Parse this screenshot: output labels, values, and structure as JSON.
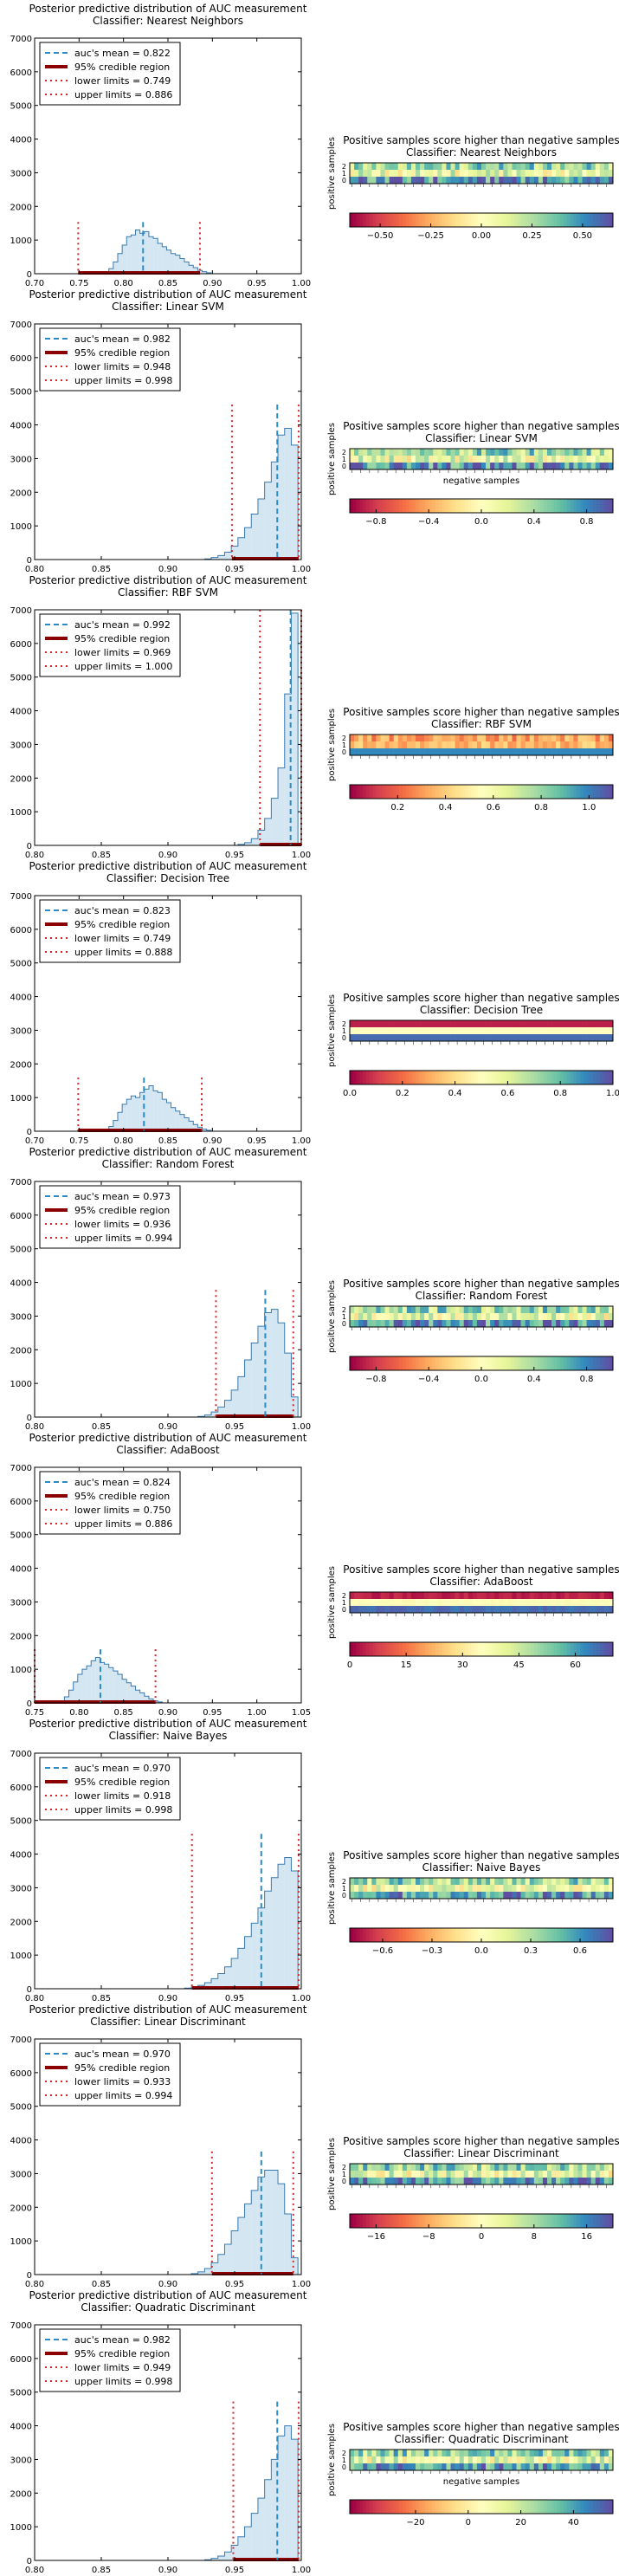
{
  "chart_data": [
    {
      "type": "histogram",
      "title": "Posterior predictive distribution of AUC measurement",
      "subtitle": "Classifier: Nearest Neighbors",
      "xlim": [
        0.7,
        1.0
      ],
      "xticks": [
        "0.70",
        "0.75",
        "0.80",
        "0.85",
        "0.90",
        "0.95",
        "1.00"
      ],
      "ylim": [
        0,
        7000
      ],
      "yticks": [
        "0",
        "1000",
        "2000",
        "3000",
        "4000",
        "5000",
        "6000",
        "7000"
      ],
      "legend": {
        "placement": "top-left",
        "entries": [
          "auc's mean = 0.822",
          "95% credible region",
          "lower limits = 0.749",
          "upper limits = 0.886"
        ]
      },
      "mean": 0.822,
      "lower": 0.749,
      "upper": 0.886,
      "bins": {
        "x": [
          0.781,
          0.786,
          0.791,
          0.796,
          0.801,
          0.806,
          0.811,
          0.816,
          0.821,
          0.826,
          0.831,
          0.836,
          0.841,
          0.846,
          0.851,
          0.856,
          0.861,
          0.866,
          0.871,
          0.876,
          0.881,
          0.886,
          0.891,
          0.896
        ],
        "y": [
          50,
          150,
          350,
          600,
          850,
          1100,
          1150,
          1300,
          1200,
          1250,
          1100,
          1050,
          900,
          800,
          700,
          600,
          550,
          450,
          350,
          250,
          180,
          100,
          60,
          30
        ]
      }
    },
    {
      "type": "heatmap",
      "title": "Positive samples score higher than negative samples",
      "subtitle": "Classifier: Nearest Neighbors",
      "ylabel": "positive samples",
      "xlabel": "",
      "colorbar_ticks": [
        "−0.50",
        "−0.25",
        "0.00",
        "0.25",
        "0.50"
      ],
      "colorbar_range": [
        -0.65,
        0.65
      ],
      "rows": 3,
      "cols": 60
    },
    {
      "type": "histogram",
      "title": "Posterior predictive distribution of AUC measurement",
      "subtitle": "Classifier: Linear SVM",
      "xlim": [
        0.8,
        1.0
      ],
      "xticks": [
        "0.80",
        "0.85",
        "0.90",
        "0.95",
        "1.00"
      ],
      "ylim": [
        0,
        7000
      ],
      "yticks": [
        "0",
        "1000",
        "2000",
        "3000",
        "4000",
        "5000",
        "6000",
        "7000"
      ],
      "legend": {
        "placement": "top-left",
        "entries": [
          "auc's mean = 0.982",
          "95% credible region",
          "lower limits = 0.948",
          "upper limits = 0.998"
        ]
      },
      "mean": 0.982,
      "lower": 0.948,
      "upper": 0.998,
      "bins": {
        "x": [
          0.93,
          0.935,
          0.94,
          0.945,
          0.95,
          0.955,
          0.96,
          0.965,
          0.97,
          0.975,
          0.98,
          0.985,
          0.99,
          0.995
        ],
        "y": [
          20,
          60,
          120,
          220,
          400,
          650,
          950,
          1350,
          1800,
          2300,
          2900,
          3700,
          3900,
          3400
        ]
      }
    },
    {
      "type": "heatmap",
      "title": "Positive samples score higher than negative samples",
      "subtitle": "Classifier: Linear SVM",
      "ylabel": "positive samples",
      "xlabel": "negative samples",
      "colorbar_ticks": [
        "−0.8",
        "−0.4",
        "0.0",
        "0.4",
        "0.8"
      ],
      "colorbar_range": [
        -1.0,
        1.0
      ],
      "rows": 3,
      "cols": 60
    },
    {
      "type": "histogram",
      "title": "Posterior predictive distribution of AUC measurement",
      "subtitle": "Classifier: RBF SVM",
      "xlim": [
        0.8,
        1.0
      ],
      "xticks": [
        "0.80",
        "0.85",
        "0.90",
        "0.95",
        "1.00"
      ],
      "ylim": [
        0,
        7000
      ],
      "yticks": [
        "0",
        "1000",
        "2000",
        "3000",
        "4000",
        "5000",
        "6000",
        "7000"
      ],
      "legend": {
        "placement": "top-left",
        "entries": [
          "auc's mean = 0.992",
          "95% credible region",
          "lower limits = 0.969",
          "upper limits = 1.000"
        ]
      },
      "mean": 0.992,
      "lower": 0.969,
      "upper": 1.0,
      "bins": {
        "x": [
          0.955,
          0.96,
          0.965,
          0.97,
          0.975,
          0.98,
          0.985,
          0.99,
          0.995
        ],
        "y": [
          30,
          80,
          200,
          450,
          800,
          1400,
          2300,
          4500,
          6900
        ]
      }
    },
    {
      "type": "heatmap",
      "title": "Positive samples score higher than negative samples",
      "subtitle": "Classifier: RBF SVM",
      "ylabel": "positive samples",
      "xlabel": "",
      "colorbar_ticks": [
        "0.2",
        "0.4",
        "0.6",
        "0.8",
        "1.0"
      ],
      "colorbar_range": [
        0.0,
        1.1
      ],
      "rows": 3,
      "cols": 60
    },
    {
      "type": "histogram",
      "title": "Posterior predictive distribution of AUC measurement",
      "subtitle": "Classifier: Decision Tree",
      "xlim": [
        0.7,
        1.0
      ],
      "xticks": [
        "0.70",
        "0.75",
        "0.80",
        "0.85",
        "0.90",
        "0.95",
        "1.00"
      ],
      "ylim": [
        0,
        7000
      ],
      "yticks": [
        "0",
        "1000",
        "2000",
        "3000",
        "4000",
        "5000",
        "6000",
        "7000"
      ],
      "legend": {
        "placement": "top-left",
        "entries": [
          "auc's mean = 0.823",
          "95% credible region",
          "lower limits = 0.749",
          "upper limits = 0.888"
        ]
      },
      "mean": 0.823,
      "lower": 0.749,
      "upper": 0.888,
      "bins": {
        "x": [
          0.781,
          0.786,
          0.791,
          0.796,
          0.801,
          0.806,
          0.811,
          0.816,
          0.821,
          0.826,
          0.831,
          0.836,
          0.841,
          0.846,
          0.851,
          0.856,
          0.861,
          0.866,
          0.871,
          0.876,
          0.881,
          0.886,
          0.891,
          0.896
        ],
        "y": [
          40,
          140,
          320,
          560,
          800,
          950,
          1050,
          1000,
          1150,
          1250,
          1350,
          1200,
          1150,
          950,
          850,
          700,
          600,
          500,
          400,
          300,
          200,
          120,
          60,
          30
        ]
      }
    },
    {
      "type": "heatmap",
      "title": "Positive samples score higher than negative samples",
      "subtitle": "Classifier: Decision Tree",
      "ylabel": "positive samples",
      "xlabel": "",
      "colorbar_ticks": [
        "0.0",
        "0.2",
        "0.4",
        "0.6",
        "0.8",
        "1.0"
      ],
      "colorbar_range": [
        0.0,
        1.0
      ],
      "rows": 3,
      "cols": 60
    },
    {
      "type": "histogram",
      "title": "Posterior predictive distribution of AUC measurement",
      "subtitle": "Classifier: Random Forest",
      "xlim": [
        0.8,
        1.0
      ],
      "xticks": [
        "0.80",
        "0.85",
        "0.90",
        "0.95",
        "1.00"
      ],
      "ylim": [
        0,
        7000
      ],
      "yticks": [
        "0",
        "1000",
        "2000",
        "3000",
        "4000",
        "5000",
        "6000",
        "7000"
      ],
      "legend": {
        "placement": "top-left",
        "entries": [
          "auc's mean = 0.973",
          "95% credible region",
          "lower limits = 0.936",
          "upper limits = 0.994"
        ]
      },
      "mean": 0.973,
      "lower": 0.936,
      "upper": 0.994,
      "bins": {
        "x": [
          0.925,
          0.93,
          0.935,
          0.94,
          0.945,
          0.95,
          0.955,
          0.96,
          0.965,
          0.97,
          0.975,
          0.98,
          0.985,
          0.99,
          0.995
        ],
        "y": [
          20,
          60,
          150,
          300,
          500,
          800,
          1200,
          1700,
          2200,
          2700,
          3100,
          3200,
          2800,
          1900,
          600
        ]
      }
    },
    {
      "type": "heatmap",
      "title": "Positive samples score higher than negative samples",
      "subtitle": "Classifier: Random Forest",
      "ylabel": "positive samples",
      "xlabel": "",
      "colorbar_ticks": [
        "−0.8",
        "−0.4",
        "0.0",
        "0.4",
        "0.8"
      ],
      "colorbar_range": [
        -1.0,
        1.0
      ],
      "rows": 3,
      "cols": 60
    },
    {
      "type": "histogram",
      "title": "Posterior predictive distribution of AUC measurement",
      "subtitle": "Classifier: AdaBoost",
      "xlim": [
        0.75,
        1.05
      ],
      "xticks": [
        "0.75",
        "0.80",
        "0.85",
        "0.90",
        "0.95",
        "1.00",
        "1.05"
      ],
      "ylim": [
        0,
        7000
      ],
      "yticks": [
        "0",
        "1000",
        "2000",
        "3000",
        "4000",
        "5000",
        "6000",
        "7000"
      ],
      "legend": {
        "placement": "top-left",
        "entries": [
          "auc's mean = 0.824",
          "95% credible region",
          "lower limits = 0.750",
          "upper limits = 0.886"
        ]
      },
      "mean": 0.824,
      "lower": 0.75,
      "upper": 0.886,
      "bins": {
        "x": [
          0.781,
          0.786,
          0.791,
          0.796,
          0.801,
          0.806,
          0.811,
          0.816,
          0.821,
          0.826,
          0.831,
          0.836,
          0.841,
          0.846,
          0.851,
          0.856,
          0.861,
          0.866,
          0.871,
          0.876,
          0.881,
          0.886,
          0.891
        ],
        "y": [
          60,
          180,
          380,
          620,
          850,
          1000,
          1100,
          1250,
          1350,
          1200,
          1150,
          1050,
          950,
          850,
          700,
          600,
          500,
          380,
          300,
          200,
          120,
          60,
          30
        ]
      }
    },
    {
      "type": "heatmap",
      "title": "Positive samples score higher than negative samples",
      "subtitle": "Classifier: AdaBoost",
      "ylabel": "positive samples",
      "xlabel": "",
      "colorbar_ticks": [
        "0",
        "15",
        "30",
        "45",
        "60"
      ],
      "colorbar_range": [
        0,
        70
      ],
      "rows": 3,
      "cols": 60
    },
    {
      "type": "histogram",
      "title": "Posterior predictive distribution of AUC measurement",
      "subtitle": "Classifier: Naive Bayes",
      "xlim": [
        0.8,
        1.0
      ],
      "xticks": [
        "0.80",
        "0.85",
        "0.90",
        "0.95",
        "1.00"
      ],
      "ylim": [
        0,
        7000
      ],
      "yticks": [
        "0",
        "1000",
        "2000",
        "3000",
        "4000",
        "5000",
        "6000",
        "7000"
      ],
      "legend": {
        "placement": "top-left",
        "entries": [
          "auc's mean = 0.970",
          "95% credible region",
          "lower limits = 0.918",
          "upper limits = 0.998"
        ]
      },
      "mean": 0.97,
      "lower": 0.918,
      "upper": 0.998,
      "bins": {
        "x": [
          0.915,
          0.92,
          0.925,
          0.93,
          0.935,
          0.94,
          0.945,
          0.95,
          0.955,
          0.96,
          0.965,
          0.97,
          0.975,
          0.98,
          0.985,
          0.99,
          0.995
        ],
        "y": [
          20,
          50,
          100,
          180,
          300,
          450,
          650,
          900,
          1200,
          1550,
          1950,
          2400,
          2900,
          3300,
          3700,
          3900,
          3500
        ]
      }
    },
    {
      "type": "heatmap",
      "title": "Positive samples score higher than negative samples",
      "subtitle": "Classifier: Naive Bayes",
      "ylabel": "positive samples",
      "xlabel": "",
      "colorbar_ticks": [
        "−0.6",
        "−0.3",
        "0.0",
        "0.3",
        "0.6"
      ],
      "colorbar_range": [
        -0.8,
        0.8
      ],
      "rows": 3,
      "cols": 60
    },
    {
      "type": "histogram",
      "title": "Posterior predictive distribution of AUC measurement",
      "subtitle": "Classifier: Linear Discriminant",
      "xlim": [
        0.8,
        1.0
      ],
      "xticks": [
        "0.80",
        "0.85",
        "0.90",
        "0.95",
        "1.00"
      ],
      "ylim": [
        0,
        7000
      ],
      "yticks": [
        "0",
        "1000",
        "2000",
        "3000",
        "4000",
        "5000",
        "6000",
        "7000"
      ],
      "legend": {
        "placement": "top-left",
        "entries": [
          "auc's mean = 0.970",
          "95% credible region",
          "lower limits = 0.933",
          "upper limits = 0.994"
        ]
      },
      "mean": 0.97,
      "lower": 0.933,
      "upper": 0.994,
      "bins": {
        "x": [
          0.92,
          0.925,
          0.93,
          0.935,
          0.94,
          0.945,
          0.95,
          0.955,
          0.96,
          0.965,
          0.97,
          0.975,
          0.98,
          0.985,
          0.99,
          0.995
        ],
        "y": [
          30,
          80,
          180,
          350,
          600,
          900,
          1300,
          1700,
          2100,
          2500,
          2900,
          3100,
          3100,
          2700,
          1800,
          500
        ]
      }
    },
    {
      "type": "heatmap",
      "title": "Positive samples score higher than negative samples",
      "subtitle": "Classifier: Linear Discriminant",
      "ylabel": "positive samples",
      "xlabel": "",
      "colorbar_ticks": [
        "−16",
        "−8",
        "0",
        "8",
        "16"
      ],
      "colorbar_range": [
        -20,
        20
      ],
      "rows": 3,
      "cols": 60
    },
    {
      "type": "histogram",
      "title": "Posterior predictive distribution of AUC measurement",
      "subtitle": "Classifier: Quadratic Discriminant",
      "xlim": [
        0.8,
        1.0
      ],
      "xticks": [
        "0.80",
        "0.85",
        "0.90",
        "0.95",
        "1.00"
      ],
      "ylim": [
        0,
        7000
      ],
      "yticks": [
        "0",
        "1000",
        "2000",
        "3000",
        "4000",
        "5000",
        "6000",
        "7000"
      ],
      "legend": {
        "placement": "top-left",
        "entries": [
          "auc's mean = 0.982",
          "95% credible region",
          "lower limits = 0.949",
          "upper limits = 0.998"
        ]
      },
      "mean": 0.982,
      "lower": 0.949,
      "upper": 0.998,
      "bins": {
        "x": [
          0.93,
          0.935,
          0.94,
          0.945,
          0.95,
          0.955,
          0.96,
          0.965,
          0.97,
          0.975,
          0.98,
          0.985,
          0.99,
          0.995
        ],
        "y": [
          20,
          60,
          130,
          250,
          450,
          700,
          1000,
          1400,
          1850,
          2400,
          3000,
          3700,
          4000,
          3600
        ]
      }
    },
    {
      "type": "heatmap",
      "title": "Positive samples score higher than negative samples",
      "subtitle": "Classifier: Quadratic Discriminant",
      "ylabel": "positive samples",
      "xlabel": "negative samples",
      "colorbar_ticks": [
        "−20",
        "0",
        "20",
        "40"
      ],
      "colorbar_range": [
        -45,
        55
      ],
      "rows": 3,
      "cols": 60
    }
  ],
  "colors": {
    "hist_fill": "#d3e6f1",
    "hist_edge": "#3a7ab0",
    "mean_line": "#2b8cc4",
    "credible_region": "#8b0000",
    "limit_lines": "#d62728",
    "axis": "#000000"
  }
}
